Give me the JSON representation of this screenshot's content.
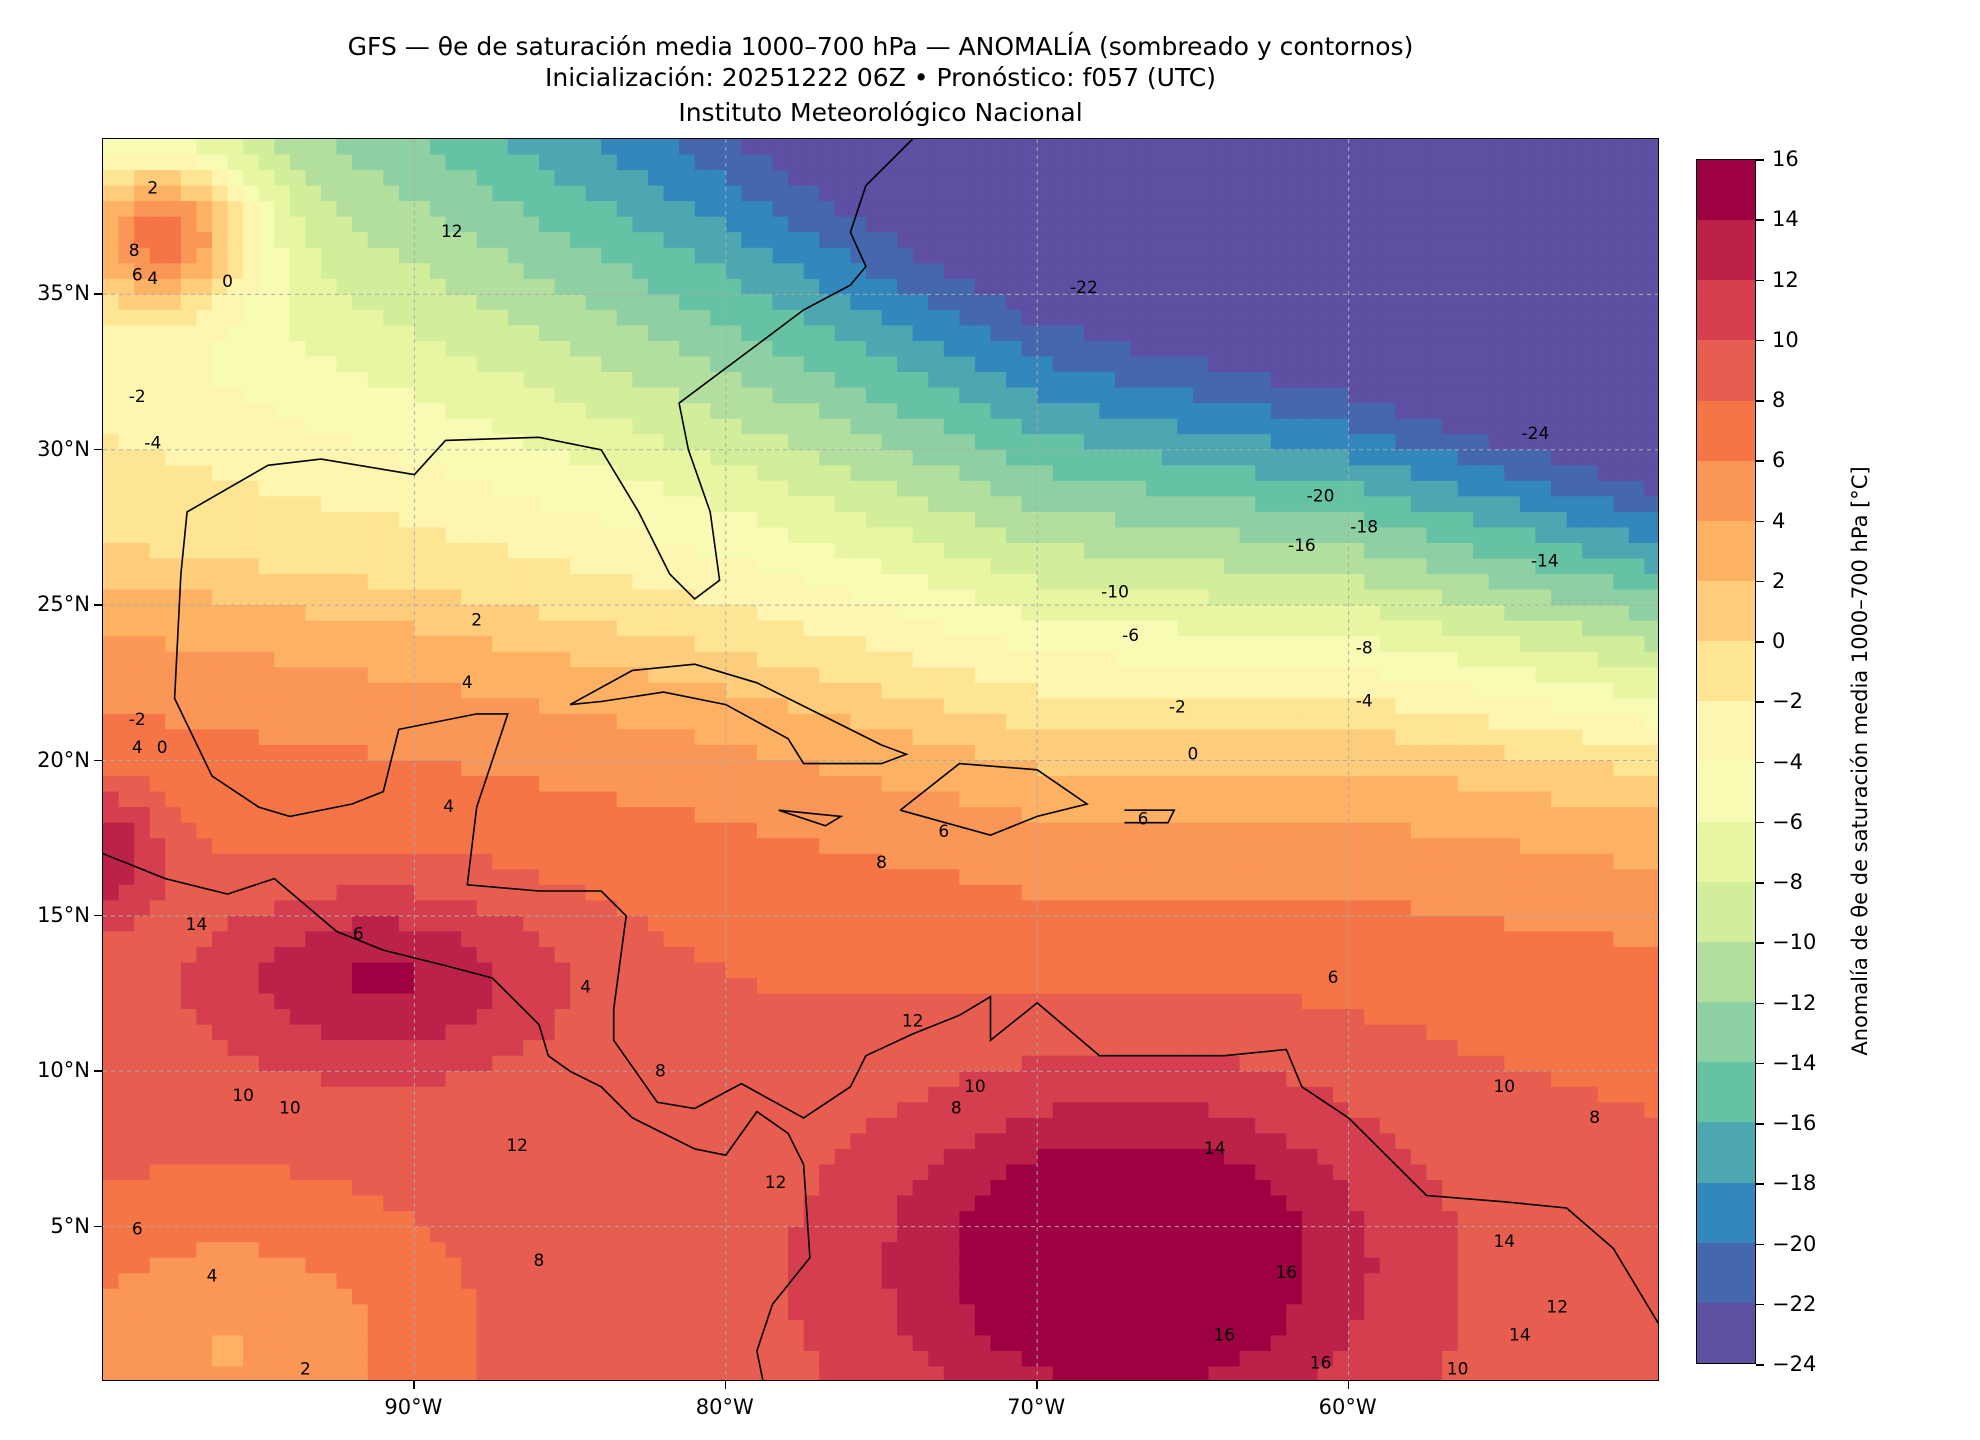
{
  "chart_data": {
    "type": "heatmap",
    "title_lines": [
      "GFS — θe de saturación media 1000–700 hPa — ANOMALÍA (sombreado y contornos)",
      "Inicialización: 20251222 06Z   •   Pronóstico: f057 (UTC)",
      "Instituto Meteorológico Nacional"
    ],
    "lon_range": [
      -100,
      -50
    ],
    "lat_range": [
      0,
      40
    ],
    "x_ticks": [
      {
        "value": -90,
        "label": "90°W"
      },
      {
        "value": -80,
        "label": "80°W"
      },
      {
        "value": -70,
        "label": "70°W"
      },
      {
        "value": -60,
        "label": "60°W"
      }
    ],
    "y_ticks": [
      {
        "value": 35,
        "label": "35°N"
      },
      {
        "value": 30,
        "label": "30°N"
      },
      {
        "value": 25,
        "label": "25°N"
      },
      {
        "value": 20,
        "label": "20°N"
      },
      {
        "value": 15,
        "label": "15°N"
      },
      {
        "value": 10,
        "label": "10°N"
      },
      {
        "value": 5,
        "label": "5°N"
      }
    ],
    "grid": true,
    "colorbar": {
      "label": "Anomalía de θe de saturación media 1000–700 hPa [°C]",
      "levels": [
        -24,
        -22,
        -20,
        -18,
        -16,
        -14,
        -12,
        -10,
        -8,
        -6,
        -4,
        -2,
        0,
        2,
        4,
        6,
        8,
        10,
        12,
        14,
        16
      ],
      "tick_labels": [
        "−24",
        "−22",
        "−20",
        "−18",
        "−16",
        "−14",
        "−12",
        "−10",
        "−8",
        "−6",
        "−4",
        "−2",
        "0",
        "2",
        "4",
        "6",
        "8",
        "10",
        "12",
        "14",
        "16"
      ],
      "colors": [
        "#5e4fa2",
        "#4467ae",
        "#3288bd",
        "#4ea6b1",
        "#66c2a5",
        "#8ed0a4",
        "#b2df9e",
        "#d3ee9b",
        "#e9f6a1",
        "#f7fbb4",
        "#fef6b0",
        "#fee593",
        "#fecd7b",
        "#fdb163",
        "#fa9656",
        "#f57547",
        "#e75d4f",
        "#d53e4f",
        "#bc2249",
        "#9e0142"
      ]
    },
    "contour_labels": [
      {
        "text": "-22",
        "lon": -68.5,
        "lat": 35.2
      },
      {
        "text": "-24",
        "lon": -54.0,
        "lat": 30.5
      },
      {
        "text": "-20",
        "lon": -60.9,
        "lat": 28.5
      },
      {
        "text": "-18",
        "lon": -59.5,
        "lat": 27.5
      },
      {
        "text": "-16",
        "lon": -61.5,
        "lat": 26.9
      },
      {
        "text": "-14",
        "lon": -53.7,
        "lat": 26.4
      },
      {
        "text": "-10",
        "lon": -67.5,
        "lat": 25.4
      },
      {
        "text": "-6",
        "lon": -67.0,
        "lat": 24.0
      },
      {
        "text": "-8",
        "lon": -59.5,
        "lat": 23.6
      },
      {
        "text": "-4",
        "lon": -59.5,
        "lat": 21.9
      },
      {
        "text": "-2",
        "lon": -65.5,
        "lat": 21.7
      },
      {
        "text": "0",
        "lon": -65.0,
        "lat": 20.2
      },
      {
        "text": "-4",
        "lon": -98.4,
        "lat": 30.2
      },
      {
        "text": "-2",
        "lon": -98.9,
        "lat": 31.7
      },
      {
        "text": "12",
        "lon": -88.8,
        "lat": 37.0
      },
      {
        "text": "2",
        "lon": -98.4,
        "lat": 38.4
      },
      {
        "text": "8",
        "lon": -99.0,
        "lat": 36.4
      },
      {
        "text": "6",
        "lon": -98.9,
        "lat": 36.0
      },
      {
        "text": "4",
        "lon": -98.4,
        "lat": 35.5
      },
      {
        "text": "0",
        "lon": -96.0,
        "lat": 35.4
      },
      {
        "text": "2",
        "lon": -88.0,
        "lat": 24.5
      },
      {
        "text": "4",
        "lon": -88.3,
        "lat": 22.5
      },
      {
        "text": "4",
        "lon": -88.9,
        "lat": 18.5
      },
      {
        "text": "6",
        "lon": -73.0,
        "lat": 17.7
      },
      {
        "text": "8",
        "lon": -75.0,
        "lat": 16.7
      },
      {
        "text": "6",
        "lon": -66.6,
        "lat": 18.1
      },
      {
        "text": "14",
        "lon": -97.0,
        "lat": 14.7
      },
      {
        "text": "6",
        "lon": -91.8,
        "lat": 14.4
      },
      {
        "text": "4",
        "lon": -84.5,
        "lat": 12.7
      },
      {
        "text": "6",
        "lon": -60.5,
        "lat": 13.0
      },
      {
        "text": "12",
        "lon": -74.0,
        "lat": 11.6
      },
      {
        "text": "8",
        "lon": -82.1,
        "lat": 10.0
      },
      {
        "text": "10",
        "lon": -72.0,
        "lat": 9.5
      },
      {
        "text": "8",
        "lon": -72.6,
        "lat": 8.8
      },
      {
        "text": "10",
        "lon": -95.5,
        "lat": 9.2
      },
      {
        "text": "10",
        "lon": -94.0,
        "lat": 8.8
      },
      {
        "text": "12",
        "lon": -86.7,
        "lat": 7.6
      },
      {
        "text": "10",
        "lon": -55.0,
        "lat": 9.5
      },
      {
        "text": "8",
        "lon": -52.1,
        "lat": 8.5
      },
      {
        "text": "14",
        "lon": -64.3,
        "lat": 7.5
      },
      {
        "text": "12",
        "lon": -78.4,
        "lat": 6.4
      },
      {
        "text": "6",
        "lon": -98.9,
        "lat": 4.9
      },
      {
        "text": "8",
        "lon": -86.0,
        "lat": 3.9
      },
      {
        "text": "4",
        "lon": -96.5,
        "lat": 3.4
      },
      {
        "text": "16",
        "lon": -62.0,
        "lat": 3.5
      },
      {
        "text": "14",
        "lon": -55.0,
        "lat": 4.5
      },
      {
        "text": "12",
        "lon": -53.3,
        "lat": 2.4
      },
      {
        "text": "16",
        "lon": -64.0,
        "lat": 1.5
      },
      {
        "text": "14",
        "lon": -54.5,
        "lat": 1.5
      },
      {
        "text": "10",
        "lon": -56.5,
        "lat": 0.4
      },
      {
        "text": "16",
        "lon": -60.9,
        "lat": 0.6
      },
      {
        "text": "2",
        "lon": -93.5,
        "lat": 0.4
      },
      {
        "text": "-2",
        "lon": -98.9,
        "lat": 21.3
      },
      {
        "text": "4",
        "lon": -98.9,
        "lat": 20.4
      },
      {
        "text": "0",
        "lon": -98.1,
        "lat": 20.4
      }
    ]
  }
}
